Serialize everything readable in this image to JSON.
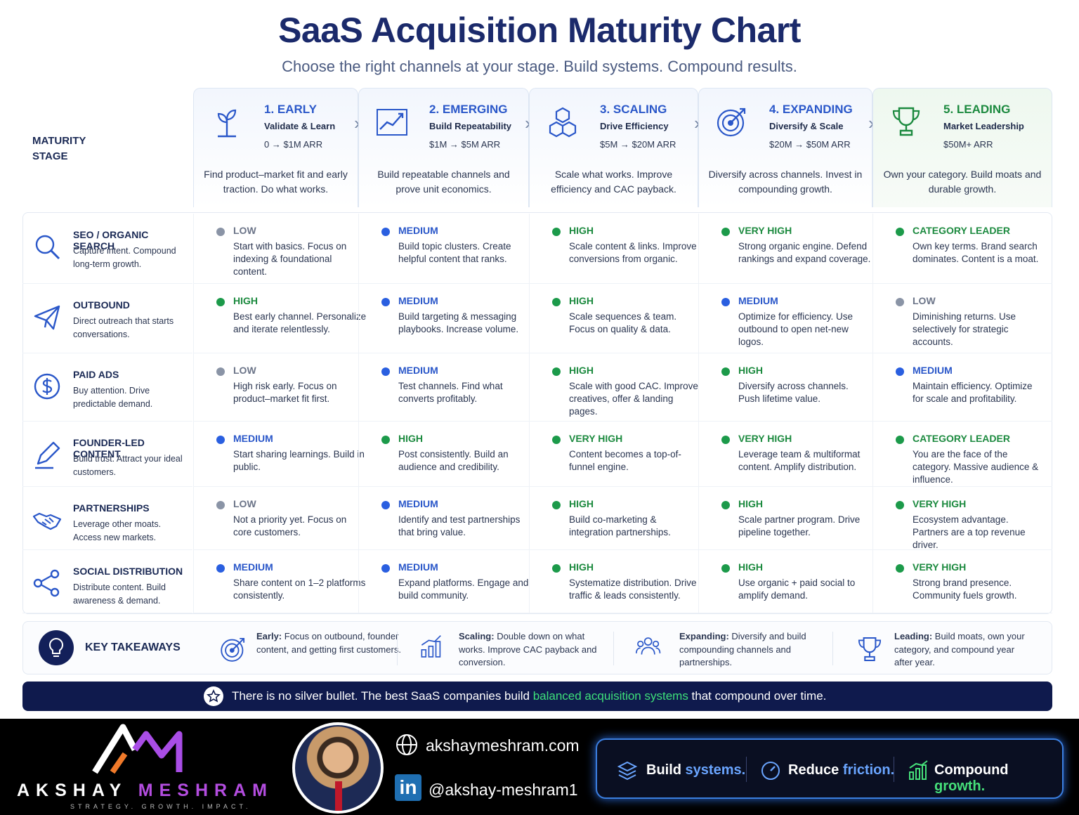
{
  "title": "SaaS Acquisition Maturity Chart",
  "subtitle": "Choose the right channels at your stage. Build systems. Compound results.",
  "stage_label_1": "MATURITY",
  "stage_label_2": "STAGE",
  "stages": [
    {
      "name": "1. EARLY",
      "sub": "Validate & Learn",
      "arr": "0 → $1M ARR",
      "desc": "Find product–market fit and early traction. Do what works.",
      "icon": "sprout-icon"
    },
    {
      "name": "2. EMERGING",
      "sub": "Build Repeatability",
      "arr": "$1M → $5M ARR",
      "desc": "Build repeatable channels and prove unit economics.",
      "icon": "growth-chart-icon"
    },
    {
      "name": "3. SCALING",
      "sub": "Drive Efficiency",
      "arr": "$5M → $20M ARR",
      "desc": "Scale what works. Improve efficiency and CAC payback.",
      "icon": "cubes-icon"
    },
    {
      "name": "4. EXPANDING",
      "sub": "Diversify & Scale",
      "arr": "$20M → $50M ARR",
      "desc": "Diversify across channels. Invest in compounding growth.",
      "icon": "target-icon"
    },
    {
      "name": "5. LEADING",
      "sub": "Market Leadership",
      "arr": "$50M+ ARR",
      "desc": "Own your category. Build moats and durable growth.",
      "icon": "trophy-icon"
    }
  ],
  "colors": {
    "LOW": "#8a94a6",
    "MEDIUM": "#2a5fe0",
    "HIGH": "#1c9a4a",
    "VERY HIGH": "#1c9a4a",
    "CATEGORY LEADER": "#1c9a4a",
    "low_text": "#6b7488",
    "medium_text": "#2a57c9",
    "high_text": "#1c8a3f"
  },
  "channels": [
    {
      "name": "SEO / ORGANIC SEARCH",
      "desc": "Capture intent. Compound long-term growth.",
      "icon": "search-icon",
      "cells": [
        {
          "level": "LOW",
          "desc": "Start with basics. Focus on indexing & foundational content."
        },
        {
          "level": "MEDIUM",
          "desc": "Build topic clusters. Create helpful content that ranks."
        },
        {
          "level": "HIGH",
          "desc": "Scale content & links. Improve conversions from organic."
        },
        {
          "level": "VERY HIGH",
          "desc": "Strong organic engine. Defend rankings and expand coverage."
        },
        {
          "level": "CATEGORY LEADER",
          "desc": "Own key terms. Brand search dominates. Content is a moat."
        }
      ]
    },
    {
      "name": "OUTBOUND",
      "desc": "Direct outreach that starts conversations.",
      "icon": "paper-plane-icon",
      "cells": [
        {
          "level": "HIGH",
          "desc": "Best early channel. Personalize and iterate relentlessly."
        },
        {
          "level": "MEDIUM",
          "desc": "Build targeting & messaging playbooks. Increase volume."
        },
        {
          "level": "HIGH",
          "desc": "Scale sequences & team. Focus on quality & data."
        },
        {
          "level": "MEDIUM",
          "desc": "Optimize for efficiency. Use outbound to open net-new logos."
        },
        {
          "level": "LOW",
          "desc": "Diminishing returns. Use selectively for strategic accounts."
        }
      ]
    },
    {
      "name": "PAID ADS",
      "desc": "Buy attention. Drive predictable demand.",
      "icon": "dollar-icon",
      "cells": [
        {
          "level": "LOW",
          "desc": "High risk early. Focus on product–market fit first."
        },
        {
          "level": "MEDIUM",
          "desc": "Test channels. Find what converts profitably."
        },
        {
          "level": "HIGH",
          "desc": "Scale with good CAC. Improve creatives, offer & landing pages."
        },
        {
          "level": "HIGH",
          "desc": "Diversify across channels. Push lifetime value."
        },
        {
          "level": "MEDIUM",
          "desc": "Maintain efficiency. Optimize for scale and profitability."
        }
      ]
    },
    {
      "name": "FOUNDER-LED CONTENT",
      "desc": "Build trust. Attract your ideal customers.",
      "icon": "pen-icon",
      "cells": [
        {
          "level": "MEDIUM",
          "desc": "Start sharing learnings. Build in public."
        },
        {
          "level": "HIGH",
          "desc": "Post consistently. Build an audience and credibility."
        },
        {
          "level": "VERY HIGH",
          "desc": "Content becomes a top-of-funnel engine."
        },
        {
          "level": "VERY HIGH",
          "desc": "Leverage team & multiformat content. Amplify distribution."
        },
        {
          "level": "CATEGORY LEADER",
          "desc": "You are the face of the category. Massive audience & influence."
        }
      ]
    },
    {
      "name": "PARTNERSHIPS",
      "desc": "Leverage other moats. Access new markets.",
      "icon": "handshake-icon",
      "cells": [
        {
          "level": "LOW",
          "desc": "Not a priority yet. Focus on core customers."
        },
        {
          "level": "MEDIUM",
          "desc": "Identify and test partnerships that bring value."
        },
        {
          "level": "HIGH",
          "desc": "Build co-marketing & integration partnerships."
        },
        {
          "level": "HIGH",
          "desc": "Scale partner program. Drive pipeline together."
        },
        {
          "level": "VERY HIGH",
          "desc": "Ecosystem advantage. Partners are a top revenue driver."
        }
      ]
    },
    {
      "name": "SOCIAL DISTRIBUTION",
      "desc": "Distribute content. Build awareness & demand.",
      "icon": "share-icon",
      "cells": [
        {
          "level": "MEDIUM",
          "desc": "Share content on 1–2 platforms consistently."
        },
        {
          "level": "MEDIUM",
          "desc": "Expand platforms. Engage and build community."
        },
        {
          "level": "HIGH",
          "desc": "Systematize distribution. Drive traffic & leads consistently."
        },
        {
          "level": "HIGH",
          "desc": "Use organic + paid social to amplify demand."
        },
        {
          "level": "VERY HIGH",
          "desc": "Strong brand presence. Community fuels growth."
        }
      ]
    }
  ],
  "takeaways": {
    "label": "KEY TAKEAWAYS",
    "items": [
      {
        "head": "Early:",
        "text": " Focus on outbound, founder content, and getting first customers.",
        "icon": "target-icon"
      },
      {
        "head": "Scaling:",
        "text": " Double down on what works. Improve CAC payback and conversion.",
        "icon": "bar-chart-icon"
      },
      {
        "head": "Expanding:",
        "text": " Diversify and build compounding channels and partnerships.",
        "icon": "team-icon"
      },
      {
        "head": "Leading:",
        "text": " Build moats, own your category, and compound year after year.",
        "icon": "trophy-icon"
      }
    ]
  },
  "banner": {
    "pre": "There is no silver bullet. The best SaaS companies build ",
    "highlight": "balanced acquisition systems",
    "post": " that compound over time."
  },
  "footer": {
    "logo_first": "AKSHAY",
    "logo_last": "MESHRAM",
    "tagline": "STRATEGY. GROWTH. IMPACT.",
    "website": "akshaymeshram.com",
    "linkedin": "@akshay-meshram1",
    "linkedin_badge": "in",
    "pill": [
      {
        "a": "Build ",
        "b": "systems.",
        "cls": "blue",
        "icon": "layers-icon"
      },
      {
        "a": "Reduce ",
        "b": "friction.",
        "cls": "blue",
        "icon": "gauge-icon"
      },
      {
        "a": "Compound ",
        "b": "growth.",
        "cls": "green",
        "icon": "growth-bars-icon"
      }
    ]
  }
}
